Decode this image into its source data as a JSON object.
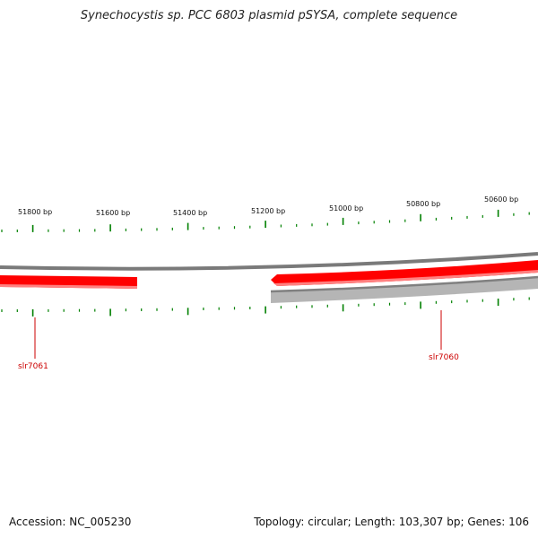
{
  "title": "Synechocystis sp. PCC 6803 plasmid pSYSA, complete sequence",
  "footer": {
    "accession": "Accession: NC_005230",
    "topology": "Topology: circular; Length: 103,307 bp; Genes: 106"
  },
  "scale": {
    "labels": [
      "51800 bp",
      "51600 bp",
      "51400 bp",
      "51200 bp",
      "51000 bp",
      "50800 bp",
      "50600 bp"
    ]
  },
  "genes": [
    {
      "name": "slr7061",
      "strand": "forward"
    },
    {
      "name": "slr7060",
      "strand": "forward"
    }
  ],
  "colors": {
    "forward_gene": "#ff0000",
    "backbone": "#7a7a7a",
    "reverse_track": "#b5b5b5",
    "tick": "#008000",
    "label": "#cc0000"
  }
}
